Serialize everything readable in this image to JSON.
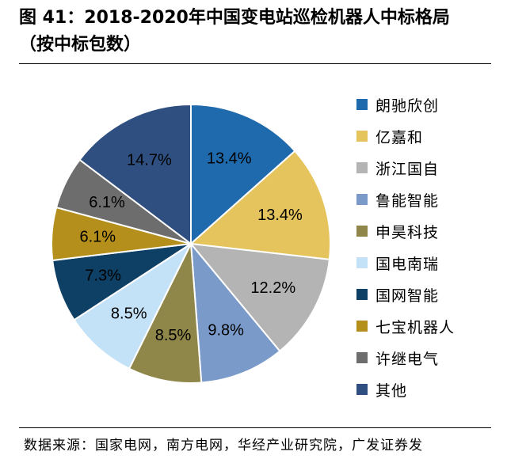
{
  "title": {
    "line1": "图 41：2018-2020年中国变电站巡检机器人中标格局",
    "line2": "（按中标包数）"
  },
  "source": "数据来源：国家电网，南方电网，华经产业研究院，广发证券发",
  "chart_data": {
    "type": "pie",
    "title": "图 41：2018-2020年中国变电站巡检机器人中标格局（按中标包数）",
    "legend_position": "right",
    "start_angle": "12 o'clock, clockwise",
    "slices": [
      {
        "label": "朗驰欣创",
        "value": 13.4,
        "display": "13.4%",
        "color": "#1f6aad"
      },
      {
        "label": "亿嘉和",
        "value": 13.4,
        "display": "13.4%",
        "color": "#e5c45e"
      },
      {
        "label": "浙江国自",
        "value": 12.2,
        "display": "12.2%",
        "color": "#b4b4b4"
      },
      {
        "label": "鲁能智能",
        "value": 9.8,
        "display": "9.8%",
        "color": "#7a9ac9"
      },
      {
        "label": "申昊科技",
        "value": 8.5,
        "display": "8.5%",
        "color": "#8f8649"
      },
      {
        "label": "国电南瑞",
        "value": 8.5,
        "display": "8.5%",
        "color": "#c4e2f7"
      },
      {
        "label": "国网智能",
        "value": 7.3,
        "display": "7.3%",
        "color": "#0e3f64"
      },
      {
        "label": "七宝机器人",
        "value": 6.1,
        "display": "6.1%",
        "color": "#b58f1c"
      },
      {
        "label": "许继电气",
        "value": 6.1,
        "display": "6.1%",
        "color": "#6d6d6d"
      },
      {
        "label": "其他",
        "value": 14.7,
        "display": "14.7%",
        "color": "#2e4f80"
      }
    ]
  }
}
